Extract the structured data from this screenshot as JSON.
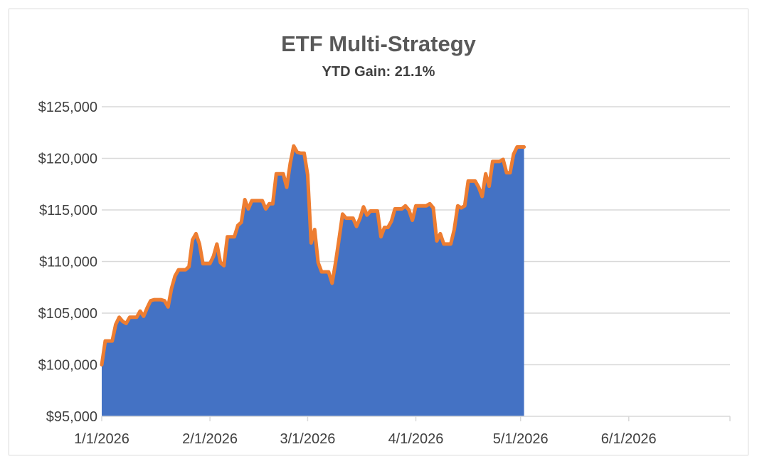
{
  "chart_data": {
    "type": "area",
    "title": "ETF Multi-Strategy",
    "subtitle": "YTD Gain: 21.1%",
    "xlabel": "",
    "ylabel": "",
    "ylim": [
      95000,
      125000
    ],
    "y_ticks": [
      95000,
      100000,
      105000,
      110000,
      115000,
      120000,
      125000
    ],
    "y_tick_labels": [
      "$95,000",
      "$100,000",
      "$105,000",
      "$110,000",
      "$115,000",
      "$120,000",
      "$125,000"
    ],
    "x_ticks": [
      "2026-01-01",
      "2026-02-01",
      "2026-03-01",
      "2026-04-01",
      "2026-05-01",
      "2026-06-01"
    ],
    "x_tick_labels": [
      "1/1/2026",
      "2/1/2026",
      "3/1/2026",
      "4/1/2026",
      "5/1/2026",
      "6/1/2026"
    ],
    "xlim": [
      "2026-01-01",
      "2026-06-30"
    ],
    "grid": true,
    "legend": "none",
    "fill_color": "#4472c4",
    "line_color": "#ed7d31",
    "series": [
      {
        "x": [
          "2026-01-01",
          "2026-01-02",
          "2026-01-03",
          "2026-01-04",
          "2026-01-05",
          "2026-01-06",
          "2026-01-07",
          "2026-01-08",
          "2026-01-09",
          "2026-01-10",
          "2026-01-11",
          "2026-01-12",
          "2026-01-13",
          "2026-01-14",
          "2026-01-15",
          "2026-01-16",
          "2026-01-17",
          "2026-01-18",
          "2026-01-19",
          "2026-01-20",
          "2026-01-21",
          "2026-01-22",
          "2026-01-23",
          "2026-01-24",
          "2026-01-25",
          "2026-01-26",
          "2026-01-27",
          "2026-01-28",
          "2026-01-29",
          "2026-01-30",
          "2026-01-31",
          "2026-02-01",
          "2026-02-02",
          "2026-02-03",
          "2026-02-04",
          "2026-02-05",
          "2026-02-06",
          "2026-02-07",
          "2026-02-08",
          "2026-02-09",
          "2026-02-10",
          "2026-02-11",
          "2026-02-12",
          "2026-02-13",
          "2026-02-14",
          "2026-02-15",
          "2026-02-16",
          "2026-02-17",
          "2026-02-18",
          "2026-02-19",
          "2026-02-20",
          "2026-02-21",
          "2026-02-22",
          "2026-02-23",
          "2026-02-24",
          "2026-02-25",
          "2026-02-26",
          "2026-02-27",
          "2026-02-28",
          "2026-03-01",
          "2026-03-02",
          "2026-03-03",
          "2026-03-04",
          "2026-03-05",
          "2026-03-06",
          "2026-03-07",
          "2026-03-08",
          "2026-03-09",
          "2026-03-10",
          "2026-03-11",
          "2026-03-12",
          "2026-03-13",
          "2026-03-14",
          "2026-03-15",
          "2026-03-16",
          "2026-03-17",
          "2026-03-18",
          "2026-03-19",
          "2026-03-20",
          "2026-03-21",
          "2026-03-22",
          "2026-03-23",
          "2026-03-24",
          "2026-03-25",
          "2026-03-26",
          "2026-03-27",
          "2026-03-28",
          "2026-03-29",
          "2026-03-30",
          "2026-03-31",
          "2026-04-01",
          "2026-04-02",
          "2026-04-03",
          "2026-04-04",
          "2026-04-05",
          "2026-04-06",
          "2026-04-07",
          "2026-04-08",
          "2026-04-09",
          "2026-04-10",
          "2026-04-11",
          "2026-04-12",
          "2026-04-13",
          "2026-04-14",
          "2026-04-15",
          "2026-04-16",
          "2026-04-17",
          "2026-04-18",
          "2026-04-19",
          "2026-04-20",
          "2026-04-21",
          "2026-04-22",
          "2026-04-23",
          "2026-04-24",
          "2026-04-25",
          "2026-04-26",
          "2026-04-27",
          "2026-04-28",
          "2026-04-29",
          "2026-04-30",
          "2026-05-01",
          "2026-05-02"
        ],
        "values": [
          100000,
          102300,
          102300,
          102300,
          103900,
          104600,
          104200,
          104000,
          104600,
          104600,
          104600,
          105200,
          104700,
          105500,
          106200,
          106300,
          106300,
          106300,
          106200,
          105600,
          107400,
          108600,
          109200,
          109200,
          109200,
          109500,
          112100,
          112700,
          111700,
          109800,
          109800,
          109800,
          110500,
          111700,
          109900,
          109600,
          112400,
          112400,
          112400,
          113500,
          113800,
          116000,
          115100,
          115900,
          115900,
          115900,
          115900,
          115100,
          115600,
          115600,
          118500,
          118500,
          118500,
          117200,
          119500,
          121200,
          120600,
          120500,
          120500,
          118400,
          111800,
          113100,
          109900,
          109000,
          109000,
          109000,
          107900,
          109900,
          112200,
          114600,
          114200,
          114200,
          114200,
          113400,
          114200,
          115300,
          114500,
          114900,
          114900,
          114900,
          112400,
          113300,
          113300,
          113900,
          115100,
          115100,
          115100,
          115400,
          115000,
          114000,
          115400,
          115400,
          115400,
          115400,
          115600,
          115200,
          112000,
          112700,
          111700,
          111700,
          111700,
          113100,
          115400,
          115200,
          115400,
          117800,
          117800,
          117800,
          117200,
          116300,
          118500,
          117300,
          119700,
          119700,
          119700,
          119900,
          118600,
          118600,
          120400,
          121100,
          121100,
          121100
        ]
      }
    ]
  }
}
